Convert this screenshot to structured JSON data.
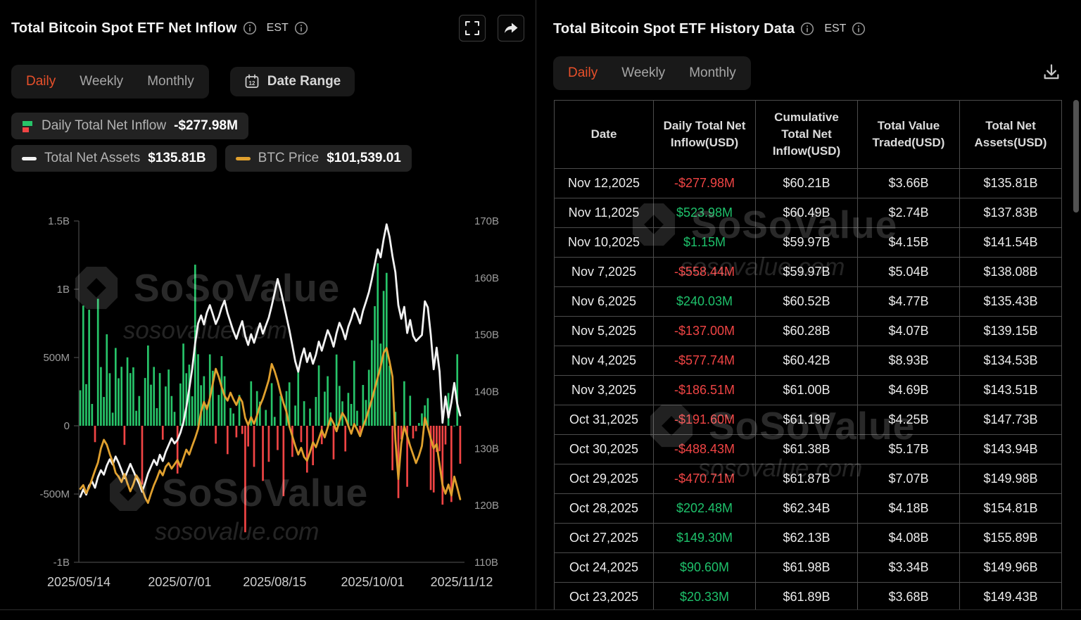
{
  "left_panel": {
    "title": "Total Bitcoin Spot ETF Net Inflow",
    "timezone": "EST",
    "tabs": [
      "Daily",
      "Weekly",
      "Monthly"
    ],
    "date_range_label": "Date Range",
    "legend": {
      "inflow_label": "Daily Total Net Inflow",
      "inflow_value": "-$277.98M",
      "assets_label": "Total Net Assets",
      "assets_value": "$135.81B",
      "btc_label": "BTC Price",
      "btc_value": "$101,539.01"
    }
  },
  "right_panel": {
    "title": "Total Bitcoin Spot ETF History Data",
    "timezone": "EST",
    "tabs": [
      "Daily",
      "Weekly",
      "Monthly"
    ],
    "table": {
      "columns": [
        "Date",
        "Daily Total Net Inflow(USD)",
        "Cumulative Total Net Inflow(USD)",
        "Total Value Traded(USD)",
        "Total Net Assets(USD)"
      ],
      "rows": [
        {
          "date": "Nov 12,2025",
          "inflow": "-$277.98M",
          "cumulative": "$60.21B",
          "traded": "$3.66B",
          "assets": "$135.81B"
        },
        {
          "date": "Nov 11,2025",
          "inflow": "$523.98M",
          "cumulative": "$60.49B",
          "traded": "$2.74B",
          "assets": "$137.83B"
        },
        {
          "date": "Nov 10,2025",
          "inflow": "$1.15M",
          "cumulative": "$59.97B",
          "traded": "$4.15B",
          "assets": "$141.54B"
        },
        {
          "date": "Nov 7,2025",
          "inflow": "-$558.44M",
          "cumulative": "$59.97B",
          "traded": "$5.04B",
          "assets": "$138.08B"
        },
        {
          "date": "Nov 6,2025",
          "inflow": "$240.03M",
          "cumulative": "$60.52B",
          "traded": "$4.77B",
          "assets": "$135.43B"
        },
        {
          "date": "Nov 5,2025",
          "inflow": "-$137.00M",
          "cumulative": "$60.28B",
          "traded": "$4.07B",
          "assets": "$139.15B"
        },
        {
          "date": "Nov 4,2025",
          "inflow": "-$577.74M",
          "cumulative": "$60.42B",
          "traded": "$8.93B",
          "assets": "$134.53B"
        },
        {
          "date": "Nov 3,2025",
          "inflow": "-$186.51M",
          "cumulative": "$61.00B",
          "traded": "$4.69B",
          "assets": "$143.51B"
        },
        {
          "date": "Oct 31,2025",
          "inflow": "-$191.60M",
          "cumulative": "$61.19B",
          "traded": "$4.25B",
          "assets": "$147.73B"
        },
        {
          "date": "Oct 30,2025",
          "inflow": "-$488.43M",
          "cumulative": "$61.38B",
          "traded": "$5.17B",
          "assets": "$143.94B"
        },
        {
          "date": "Oct 29,2025",
          "inflow": "-$470.71M",
          "cumulative": "$61.87B",
          "traded": "$7.07B",
          "assets": "$149.98B"
        },
        {
          "date": "Oct 28,2025",
          "inflow": "$202.48M",
          "cumulative": "$62.34B",
          "traded": "$4.18B",
          "assets": "$154.81B"
        },
        {
          "date": "Oct 27,2025",
          "inflow": "$149.30M",
          "cumulative": "$62.13B",
          "traded": "$4.08B",
          "assets": "$155.89B"
        },
        {
          "date": "Oct 24,2025",
          "inflow": "$90.60M",
          "cumulative": "$61.98B",
          "traded": "$3.34B",
          "assets": "$149.96B"
        },
        {
          "date": "Oct 23,2025",
          "inflow": "$20.33M",
          "cumulative": "$61.89B",
          "traded": "$3.68B",
          "assets": "$149.43B"
        }
      ]
    }
  },
  "watermark": {
    "brand": "SoSoValue",
    "domain": "sosovalue.com"
  },
  "icons": {
    "info-icon": "circle-i",
    "fullscreen-icon": "corner-brackets",
    "share-icon": "forward-arrow",
    "calendar-icon": "calendar-grid",
    "download-icon": "tray-down-arrow",
    "inflow-legend-icon": "green-red-mini-bars",
    "assets-legend-icon": "white-dash",
    "btc-legend-icon": "orange-dash",
    "sosovalue-logo": "notched-cube"
  },
  "colors": {
    "accent_orange": "#e8502a",
    "positive_green": "#1ec16b",
    "negative_red": "#f04444",
    "btc_orange": "#e0a02e",
    "assets_white": "#f2f2f2"
  },
  "chart_data": {
    "type": "bar",
    "title": "Total Bitcoin Spot ETF Net Inflow",
    "x_tick_labels": [
      "2025/05/14",
      "2025/07/01",
      "2025/08/15",
      "2025/10/01",
      "2025/11/12"
    ],
    "x_tick_indices": [
      0,
      34,
      66,
      99,
      129
    ],
    "left_axis": {
      "ticks": [
        "1.5B",
        "1B",
        "500M",
        "0",
        "-500M",
        "-1B"
      ],
      "values": [
        1500,
        1000,
        500,
        0,
        -500,
        -1000
      ],
      "unit": "USD millions"
    },
    "right_axis": {
      "ticks": [
        "170B",
        "160B",
        "150B",
        "140B",
        "130B",
        "120B",
        "110B"
      ],
      "values": [
        170,
        160,
        150,
        140,
        130,
        120,
        110
      ],
      "unit": "USD billions"
    },
    "grid": false,
    "legend_position": "top-left",
    "series": [
      {
        "name": "Daily Total Net Inflow",
        "type": "bar",
        "unit": "$M",
        "pos_color": "#27c469",
        "neg_color": "#f04444",
        "values": [
          260,
          880,
          305,
          850,
          160,
          -120,
          930,
          430,
          211,
          670,
          385,
          96,
          570,
          348,
          432,
          -140,
          501,
          386,
          428,
          110,
          218,
          -431,
          350,
          588,
          301,
          431,
          129,
          386,
          -102,
          288,
          412,
          218,
          102,
          -350,
          310,
          602,
          385,
          448,
          216,
          1180,
          524,
          297,
          363,
          155,
          523,
          403,
          -131,
          226,
          510,
          363,
          -208,
          130,
          90,
          -85,
          226,
          -60,
          -780,
          -152,
          326,
          -301,
          254,
          177,
          -404,
          116,
          -264,
          312,
          65,
          -178,
          219,
          -516,
          254,
          318,
          -228,
          148,
          403,
          -120,
          180,
          -343,
          126,
          -289,
          211,
          442,
          -135,
          250,
          363,
          98,
          -246,
          522,
          292,
          179,
          -188,
          241,
          160,
          476,
          110,
          -75,
          299,
          189,
          410,
          627,
          876,
          1190,
          602,
          988,
          1120,
          440,
          -326,
          102,
          -530,
          -100,
          326,
          -447,
          220,
          -93,
          -40,
          20.33,
          90.6,
          149.3,
          202.48,
          -470.71,
          -488.43,
          -191.6,
          -186.51,
          -577.74,
          -137,
          240.03,
          -558.44,
          1.15,
          523.98,
          -277.98
        ]
      },
      {
        "name": "Total Net Assets",
        "type": "line",
        "unit": "$B",
        "color": "#f2f2f2",
        "values": [
          121.5,
          122.8,
          121.9,
          123.5,
          124.2,
          123.1,
          125.0,
          126.2,
          125.4,
          127.0,
          128.1,
          127.2,
          128.6,
          127.5,
          126.2,
          124.8,
          126.0,
          127.3,
          126.1,
          124.9,
          123.8,
          122.4,
          123.9,
          125.6,
          126.8,
          128.0,
          127.1,
          128.9,
          127.8,
          129.4,
          130.6,
          131.8,
          130.9,
          131.5,
          132.8,
          134.6,
          137.2,
          140.5,
          144.0,
          148.5,
          152.0,
          153.4,
          151.8,
          153.9,
          155.2,
          153.6,
          151.9,
          153.1,
          154.8,
          156.0,
          153.8,
          152.2,
          150.6,
          149.3,
          151.0,
          152.4,
          149.8,
          148.2,
          150.1,
          148.6,
          150.3,
          152.0,
          150.2,
          151.6,
          153.0,
          155.1,
          157.4,
          159.8,
          157.9,
          155.6,
          153.2,
          150.8,
          148.1,
          145.3,
          143.5,
          145.9,
          147.6,
          145.2,
          146.8,
          144.9,
          146.5,
          148.8,
          147.2,
          149.0,
          150.8,
          149.6,
          147.9,
          150.3,
          152.1,
          150.9,
          149.2,
          151.4,
          152.8,
          154.6,
          153.5,
          152.0,
          154.2,
          155.8,
          157.5,
          159.8,
          162.4,
          165.0,
          163.6,
          166.8,
          169.4,
          167.2,
          163.8,
          161.0,
          155.2,
          152.8,
          154.9,
          150.3,
          152.6,
          149.8,
          148.9,
          149.43,
          149.96,
          155.89,
          154.81,
          149.98,
          143.94,
          147.73,
          143.51,
          134.53,
          139.15,
          135.43,
          138.08,
          141.54,
          137.83,
          135.81
        ]
      },
      {
        "name": "BTC Price",
        "type": "line",
        "unit": "$ thousands",
        "color": "#e0a02e",
        "plot_range_k": [
          99,
          128
        ],
        "values": [
          103.2,
          103.8,
          102.5,
          103.4,
          104.8,
          106.2,
          107.5,
          109.8,
          111.2,
          110.4,
          108.9,
          107.6,
          105.8,
          105.2,
          104.3,
          105.6,
          104.1,
          102.8,
          103.9,
          105.4,
          104.6,
          103.2,
          101.8,
          100.9,
          102.4,
          103.8,
          104.9,
          106.2,
          105.4,
          106.8,
          107.4,
          106.5,
          107.2,
          107.9,
          106.8,
          108.2,
          109.6,
          108.8,
          110.2,
          111.5,
          113.0,
          115.8,
          117.4,
          116.2,
          118.0,
          120.4,
          122.8,
          121.5,
          119.8,
          118.4,
          117.6,
          118.9,
          117.8,
          116.9,
          118.2,
          117.4,
          114.8,
          113.6,
          114.9,
          113.8,
          115.2,
          116.8,
          117.9,
          119.4,
          121.0,
          123.6,
          122.4,
          120.8,
          118.9,
          117.2,
          115.8,
          113.4,
          111.8,
          110.2,
          108.8,
          109.9,
          108.4,
          107.8,
          109.2,
          110.8,
          110.0,
          111.4,
          112.8,
          111.6,
          113.2,
          114.8,
          113.9,
          112.6,
          114.2,
          115.6,
          114.8,
          113.5,
          112.2,
          113.8,
          112.9,
          111.8,
          113.4,
          114.6,
          116.2,
          117.8,
          119.6,
          121.4,
          123.2,
          125.4,
          126.2,
          124.0,
          121.5,
          111.2,
          104.8,
          110.6,
          113.4,
          111.8,
          110.2,
          108.8,
          107.4,
          108.6,
          110.2,
          114.8,
          113.2,
          111.4,
          109.8,
          110.5,
          107.2,
          103.8,
          102.4,
          103.9,
          102.1,
          105.2,
          103.4,
          101.5
        ]
      }
    ]
  }
}
